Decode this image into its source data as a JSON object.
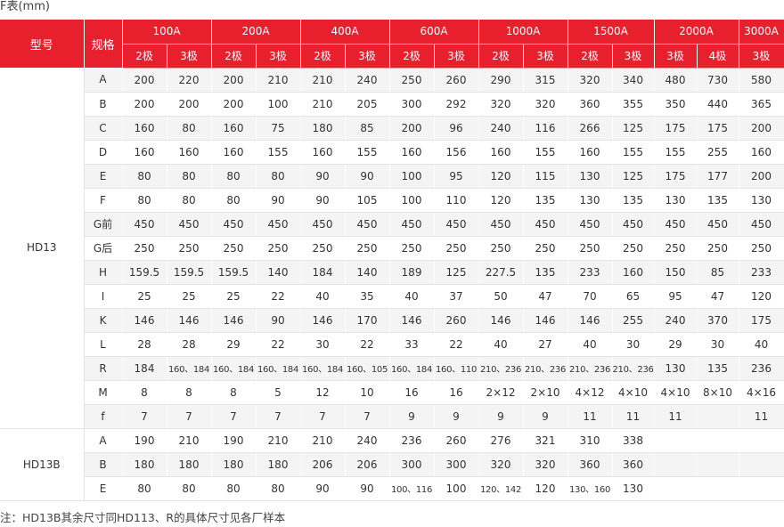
{
  "caption": "F表(mm)",
  "header": {
    "model_label": "型号",
    "spec_label": "规格",
    "groups": [
      "100A",
      "200A",
      "400A",
      "600A",
      "1000A",
      "1500A",
      "2000A",
      "3000A"
    ],
    "poles": [
      "2极",
      "3极",
      "2极",
      "3极",
      "2极",
      "3极",
      "2极",
      "3极",
      "2极",
      "3极",
      "2极",
      "3极",
      "3极",
      "4极",
      "3极"
    ]
  },
  "sections": [
    {
      "model": "HD13",
      "rows": [
        {
          "spec": "A",
          "values": [
            "200",
            "220",
            "200",
            "210",
            "210",
            "240",
            "250",
            "260",
            "290",
            "315",
            "320",
            "340",
            "480",
            "730",
            "580"
          ]
        },
        {
          "spec": "B",
          "values": [
            "200",
            "200",
            "200",
            "100",
            "210",
            "205",
            "300",
            "292",
            "320",
            "320",
            "360",
            "355",
            "350",
            "440",
            "365"
          ]
        },
        {
          "spec": "C",
          "values": [
            "160",
            "80",
            "160",
            "75",
            "180",
            "85",
            "200",
            "96",
            "240",
            "116",
            "266",
            "125",
            "175",
            "175",
            "200"
          ]
        },
        {
          "spec": "D",
          "values": [
            "160",
            "160",
            "160",
            "155",
            "160",
            "155",
            "160",
            "156",
            "160",
            "155",
            "160",
            "155",
            "155",
            "255",
            "160"
          ]
        },
        {
          "spec": "E",
          "values": [
            "80",
            "80",
            "80",
            "80",
            "90",
            "90",
            "100",
            "95",
            "120",
            "115",
            "130",
            "125",
            "175",
            "177",
            "200"
          ]
        },
        {
          "spec": "F",
          "values": [
            "80",
            "80",
            "80",
            "90",
            "90",
            "105",
            "100",
            "110",
            "120",
            "135",
            "130",
            "135",
            "130",
            "135",
            "130"
          ]
        },
        {
          "spec": "G前",
          "values": [
            "450",
            "450",
            "450",
            "450",
            "450",
            "450",
            "450",
            "450",
            "450",
            "450",
            "450",
            "450",
            "450",
            "450",
            "450"
          ]
        },
        {
          "spec": "G后",
          "values": [
            "250",
            "250",
            "250",
            "250",
            "250",
            "250",
            "250",
            "250",
            "250",
            "250",
            "250",
            "250",
            "250",
            "250",
            "250"
          ]
        },
        {
          "spec": "H",
          "values": [
            "159.5",
            "159.5",
            "159.5",
            "140",
            "184",
            "140",
            "189",
            "125",
            "227.5",
            "135",
            "233",
            "160",
            "150",
            "85",
            "233"
          ]
        },
        {
          "spec": "I",
          "values": [
            "25",
            "25",
            "25",
            "22",
            "40",
            "35",
            "40",
            "37",
            "50",
            "47",
            "70",
            "65",
            "95",
            "47",
            "120"
          ]
        },
        {
          "spec": "K",
          "values": [
            "146",
            "146",
            "146",
            "90",
            "146",
            "170",
            "146",
            "260",
            "146",
            "146",
            "146",
            "255",
            "240",
            "370",
            "175"
          ]
        },
        {
          "spec": "L",
          "values": [
            "28",
            "28",
            "29",
            "22",
            "30",
            "22",
            "33",
            "22",
            "40",
            "27",
            "40",
            "30",
            "29",
            "30",
            "40"
          ]
        },
        {
          "spec": "R",
          "values": [
            "184",
            "160、184",
            "160、184",
            "160、184",
            "160、184",
            "160、105",
            "160、184",
            "160、110",
            "210、236",
            "210、236",
            "210、236",
            "210、236",
            "130",
            "135",
            "236"
          ]
        },
        {
          "spec": "M",
          "values": [
            "8",
            "8",
            "8",
            "5",
            "12",
            "10",
            "16",
            "16",
            "2×12",
            "2×10",
            "4×12",
            "4×10",
            "4×10",
            "8×10",
            "4×16"
          ]
        },
        {
          "spec": "f",
          "values": [
            "7",
            "7",
            "7",
            "7",
            "7",
            "7",
            "9",
            "9",
            "9",
            "9",
            "11",
            "11",
            "11",
            "",
            "11"
          ]
        }
      ]
    },
    {
      "model": "HD13B",
      "rows": [
        {
          "spec": "A",
          "values": [
            "190",
            "210",
            "190",
            "210",
            "210",
            "240",
            "236",
            "260",
            "276",
            "321",
            "310",
            "338",
            "",
            "",
            ""
          ]
        },
        {
          "spec": "B",
          "values": [
            "180",
            "180",
            "180",
            "180",
            "206",
            "206",
            "300",
            "300",
            "320",
            "320",
            "360",
            "360",
            "",
            "",
            ""
          ]
        },
        {
          "spec": "E",
          "values": [
            "80",
            "80",
            "80",
            "80",
            "90",
            "90",
            "100、116",
            "100",
            "120、142",
            "120",
            "130、160",
            "130",
            "",
            "",
            ""
          ]
        }
      ]
    }
  ],
  "note": "注：HD13B其余尺寸同HD113、R的具体尺寸见各厂样本"
}
